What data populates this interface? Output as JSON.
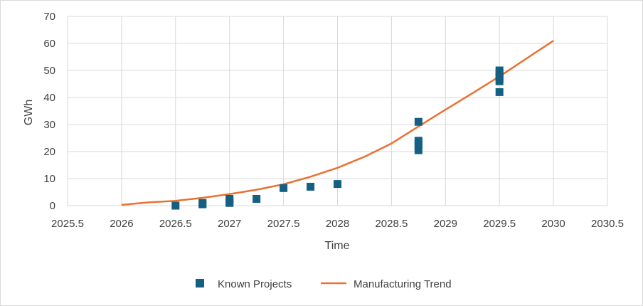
{
  "chart_data": {
    "type": "scatter",
    "xlabel": "Time",
    "ylabel": "GWh",
    "xlim": [
      2025.5,
      2030.5
    ],
    "ylim": [
      0,
      70
    ],
    "x_ticks": [
      2025.5,
      2026,
      2026.5,
      2027,
      2027.5,
      2028,
      2028.5,
      2029,
      2029.5,
      2030,
      2030.5
    ],
    "x_tick_labels": [
      "2025.5",
      "2026",
      "2026.5",
      "2027",
      "2027.5",
      "2028",
      "2028.5",
      "2029",
      "2029.5",
      "2030",
      "2030.5"
    ],
    "y_ticks": [
      0,
      10,
      20,
      30,
      40,
      50,
      60,
      70
    ],
    "y_tick_labels": [
      "0",
      "10",
      "20",
      "30",
      "40",
      "50",
      "60",
      "70"
    ],
    "grid": true,
    "legend_position": "bottom",
    "series": [
      {
        "name": "Known Projects",
        "kind": "scatter",
        "marker": "square",
        "color": "#156082",
        "points": [
          [
            2026.5,
            0
          ],
          [
            2026.75,
            0.5
          ],
          [
            2026.75,
            1
          ],
          [
            2027,
            1
          ],
          [
            2027,
            1.5
          ],
          [
            2027,
            2.5
          ],
          [
            2027.25,
            2.5
          ],
          [
            2027.5,
            6.5
          ],
          [
            2027.75,
            7
          ],
          [
            2028,
            8
          ],
          [
            2028.75,
            20.5
          ],
          [
            2028.75,
            22
          ],
          [
            2028.75,
            23
          ],
          [
            2028.75,
            24
          ],
          [
            2028.75,
            31
          ],
          [
            2029.5,
            42
          ],
          [
            2029.5,
            46
          ],
          [
            2029.5,
            47
          ],
          [
            2029.5,
            48
          ],
          [
            2029.5,
            49
          ],
          [
            2029.5,
            50
          ]
        ]
      },
      {
        "name": "Manufacturing Trend",
        "kind": "line",
        "color": "#e97132",
        "points": [
          [
            2026,
            0.3
          ],
          [
            2026.25,
            1.2
          ],
          [
            2026.5,
            1.8
          ],
          [
            2026.75,
            2.9
          ],
          [
            2027,
            4.3
          ],
          [
            2027.25,
            5.9
          ],
          [
            2027.5,
            7.9
          ],
          [
            2027.75,
            10.7
          ],
          [
            2028,
            14
          ],
          [
            2028.25,
            18.1
          ],
          [
            2028.5,
            23
          ],
          [
            2028.75,
            29.3
          ],
          [
            2029,
            35.5
          ],
          [
            2029.25,
            41.6
          ],
          [
            2029.5,
            47.8
          ],
          [
            2029.75,
            54.4
          ],
          [
            2030,
            61
          ]
        ]
      }
    ]
  }
}
